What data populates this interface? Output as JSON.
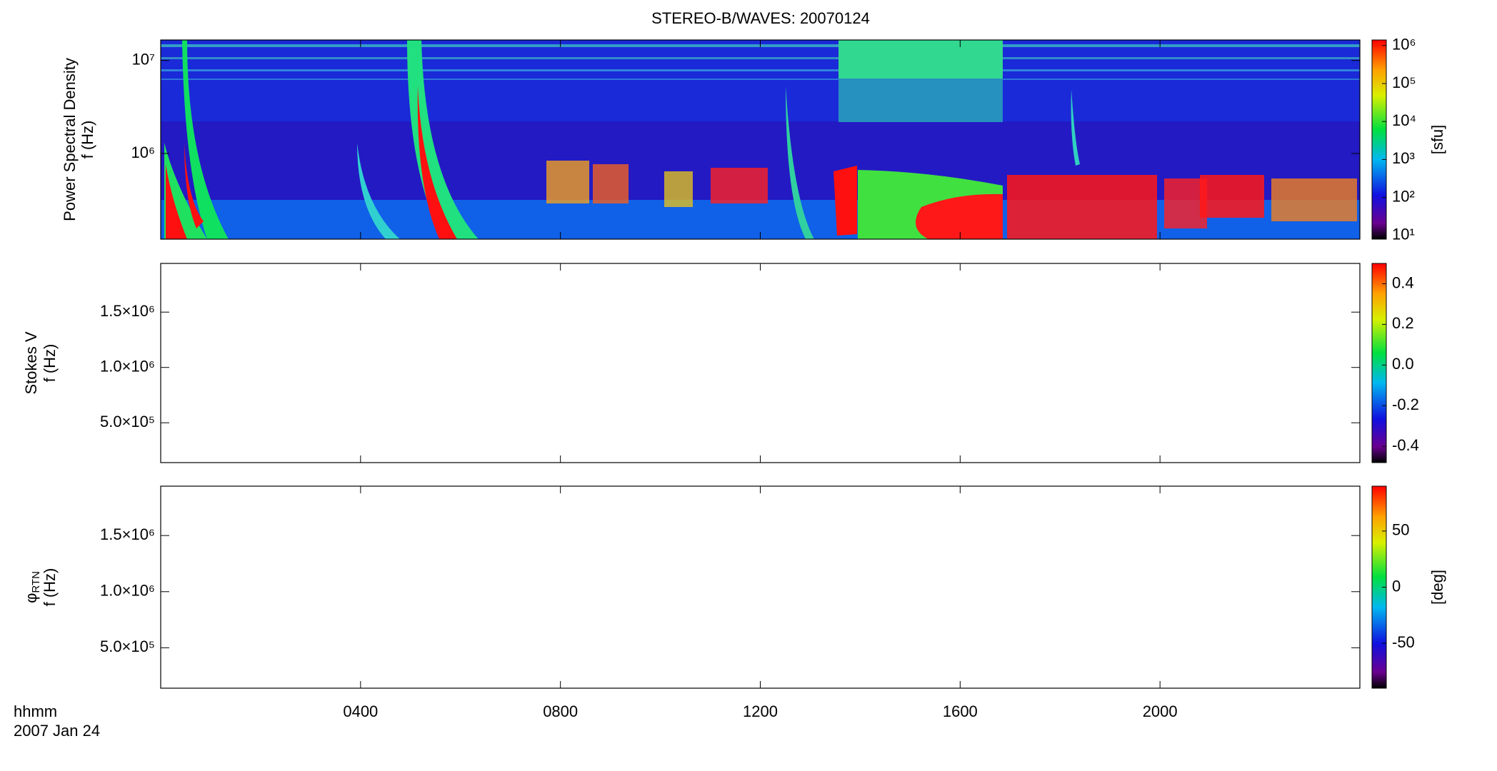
{
  "title": "STEREO-B/WAVES: 20070124",
  "time_axis": {
    "label_lines": [
      "hhmm",
      "2007 Jan 24"
    ],
    "xlim": [
      0,
      24
    ],
    "xticks": [
      {
        "value": 4,
        "label": "0400"
      },
      {
        "value": 8,
        "label": "0800"
      },
      {
        "value": 12,
        "label": "1200"
      },
      {
        "value": 16,
        "label": "1600"
      },
      {
        "value": 20,
        "label": "2000"
      }
    ]
  },
  "chart_data": [
    {
      "type": "heatmap",
      "ylabel": [
        "Power Spectral Density",
        "f (Hz)"
      ],
      "yscale": "log",
      "ylim": [
        120000,
        16600000
      ],
      "yticks": [
        {
          "value": 1000000,
          "label": "10⁶"
        },
        {
          "value": 10000000,
          "label": "10⁷"
        }
      ],
      "cscale": "log",
      "clim": [
        8,
        1400000
      ],
      "cticks": [
        {
          "value": 10,
          "label": "10¹"
        },
        {
          "value": 100,
          "label": "10²"
        },
        {
          "value": 1000,
          "label": "10³"
        },
        {
          "value": 10000,
          "label": "10⁴"
        },
        {
          "value": 100000,
          "label": "10⁵"
        },
        {
          "value": 1000000,
          "label": "10⁶"
        }
      ],
      "clabel": "[sfu]"
    },
    {
      "type": "heatmap",
      "ylabel": [
        "Stokes V",
        "f (Hz)"
      ],
      "yscale": "linear",
      "ylim": [
        140000,
        1940000
      ],
      "yticks": [
        {
          "value": 500000,
          "label": "5.0×10⁵"
        },
        {
          "value": 1000000,
          "label": "1.0×10⁶"
        },
        {
          "value": 1500000,
          "label": "1.5×10⁶"
        }
      ],
      "cscale": "linear",
      "clim": [
        -0.48,
        0.5
      ],
      "cticks": [
        -0.4,
        -0.2,
        {
          "value": 0,
          "label": "0.0"
        },
        0.2,
        0.4
      ]
    },
    {
      "type": "heatmap",
      "ylabel_symbol": "φ",
      "ylabel_subscript": "RTN",
      "ylabel": [
        "f (Hz)"
      ],
      "yscale": "linear",
      "ylim": [
        140000,
        1940000
      ],
      "yticks": [
        {
          "value": 500000,
          "label": "5.0×10⁵"
        },
        {
          "value": 1000000,
          "label": "1.0×10⁶"
        },
        {
          "value": 1500000,
          "label": "1.5×10⁶"
        }
      ],
      "cscale": "linear",
      "clim": [
        -90,
        90
      ],
      "cticks": [
        -50,
        0,
        50
      ],
      "clabel": "[deg]"
    }
  ]
}
